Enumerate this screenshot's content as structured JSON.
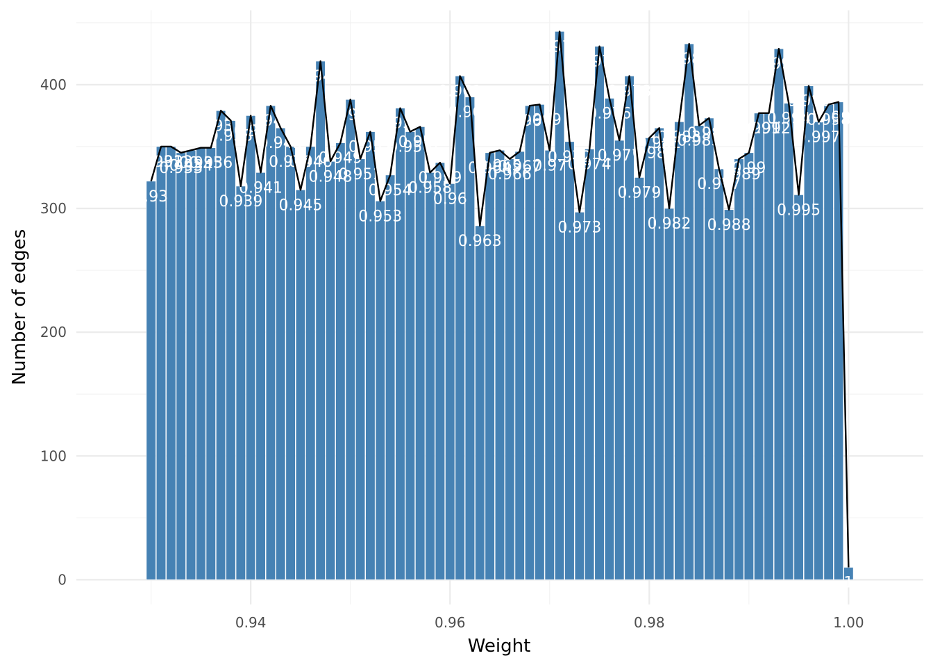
{
  "chart_data": {
    "type": "bar",
    "overlay": "line",
    "xlabel": "Weight",
    "ylabel": "Number of edges",
    "xlim": [
      0.9225,
      1.0075
    ],
    "ylim": [
      -20,
      460
    ],
    "x_ticks": [
      0.94,
      0.96,
      0.98,
      1.0
    ],
    "x_tick_labels": [
      "0.94",
      "0.96",
      "0.98",
      "1.00"
    ],
    "y_ticks": [
      0,
      100,
      200,
      300,
      400
    ],
    "y_tick_labels": [
      "0",
      "100",
      "200",
      "300",
      "400"
    ],
    "grid": true,
    "bar_color": "#4682b4",
    "line_color": "#000000",
    "label_color": "#ffffff",
    "x": [
      0.93,
      0.931,
      0.932,
      0.933,
      0.934,
      0.935,
      0.936,
      0.937,
      0.938,
      0.939,
      0.94,
      0.941,
      0.942,
      0.943,
      0.944,
      0.945,
      0.946,
      0.947,
      0.948,
      0.949,
      0.95,
      0.951,
      0.952,
      0.953,
      0.954,
      0.955,
      0.956,
      0.957,
      0.958,
      0.959,
      0.96,
      0.961,
      0.962,
      0.963,
      0.964,
      0.965,
      0.966,
      0.967,
      0.968,
      0.969,
      0.97,
      0.971,
      0.972,
      0.973,
      0.974,
      0.975,
      0.976,
      0.977,
      0.978,
      0.979,
      0.98,
      0.981,
      0.982,
      0.983,
      0.984,
      0.985,
      0.986,
      0.987,
      0.988,
      0.989,
      0.99,
      0.991,
      0.992,
      0.993,
      0.994,
      0.995,
      0.996,
      0.997,
      0.998,
      0.999,
      1.0
    ],
    "values": [
      322,
      350,
      350,
      345,
      347,
      349,
      349,
      379,
      371,
      318,
      375,
      329,
      383,
      365,
      350,
      315,
      350,
      419,
      338,
      353,
      388,
      340,
      362,
      306,
      327,
      381,
      362,
      366,
      329,
      337,
      320,
      407,
      390,
      286,
      345,
      347,
      340,
      346,
      383,
      384,
      347,
      443,
      354,
      297,
      348,
      431,
      389,
      355,
      407,
      325,
      357,
      365,
      300,
      370,
      433,
      367,
      373,
      332,
      299,
      340,
      345,
      377,
      377,
      429,
      385,
      311,
      399,
      370,
      384,
      386,
      10
    ],
    "labels": [
      "0.93",
      "0.931",
      "0.932",
      "0.933",
      "0.934",
      "0.935",
      "0.936",
      "0.937",
      "0.938",
      "0.939",
      "0.94",
      "0.941",
      "0.942",
      "0.943",
      "0.944",
      "0.945",
      "0.946",
      "0.947",
      "0.948",
      "0.949",
      "0.95",
      "0.951",
      "0.952",
      "0.953",
      "0.954",
      "0.955",
      "0.956",
      "0.957",
      "0.958",
      "0.959",
      "0.96",
      "0.961",
      "0.962",
      "0.963",
      "0.964",
      "0.965",
      "0.966",
      "0.967",
      "0.968",
      "0.969",
      "0.97",
      "0.971",
      "0.972",
      "0.973",
      "0.974",
      "0.975",
      "0.976",
      "0.977",
      "0.978",
      "0.979",
      "0.98",
      "0.981",
      "0.982",
      "0.983",
      "0.984",
      "0.985",
      "0.986",
      "0.987",
      "0.988",
      "0.989",
      "0.99",
      "0.991",
      "0.992",
      "0.993",
      "0.994",
      "0.995",
      "0.996",
      "0.997",
      "0.998",
      "0.999",
      "1"
    ]
  }
}
